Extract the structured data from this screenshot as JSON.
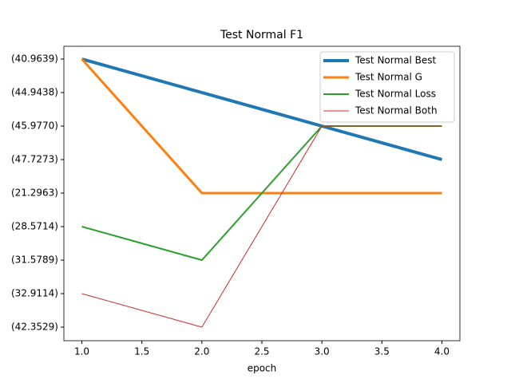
{
  "chart_data": {
    "type": "line",
    "title": "Test Normal F1",
    "x_label": "epoch",
    "x": [
      1.0,
      2.0,
      3.0,
      4.0
    ],
    "xlim": [
      0.85,
      4.15
    ],
    "xticks": [
      {
        "value": 1,
        "label": "1.0"
      },
      {
        "value": 1.5,
        "label": "1.5"
      },
      {
        "value": 2,
        "label": "2.0"
      },
      {
        "value": 2.5,
        "label": "2.5"
      },
      {
        "value": 3,
        "label": "3.0"
      },
      {
        "value": 3.5,
        "label": "3.5"
      },
      {
        "value": 4,
        "label": "4.0"
      }
    ],
    "ycategories": [
      "(40.9639)",
      "(44.9438)",
      "(45.9770)",
      "(47.7273)",
      "(21.2963)",
      "(28.5714)",
      "(31.5789)",
      "(32.9114)",
      "(42.3529)"
    ],
    "series": [
      {
        "name": "Test Normal Best",
        "color": "#1f77b4",
        "values": [
          "(40.9639)",
          "(44.9438)",
          "(45.9770)",
          "(47.7273)"
        ]
      },
      {
        "name": "Test Normal G",
        "color": "#ff7f0e",
        "values": [
          "(40.9639)",
          "(21.2963)",
          "(21.2963)",
          "(21.2963)"
        ]
      },
      {
        "name": "Test Normal Loss",
        "color": "#2ca02c",
        "values": [
          "(28.5714)",
          "(31.5789)",
          "(45.9770)",
          "(45.9770)"
        ]
      },
      {
        "name": "Test Normal Both",
        "color": "#d62728",
        "values": [
          "(32.9114)",
          "(42.3529)",
          "(45.9770)",
          "(45.9770)"
        ]
      }
    ],
    "legend": "upper right"
  }
}
